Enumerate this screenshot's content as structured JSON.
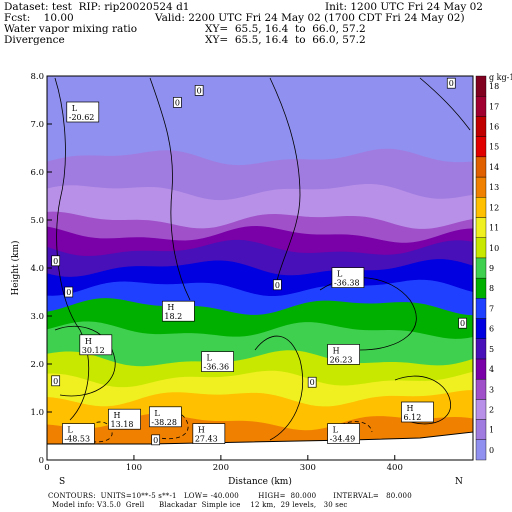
{
  "header": {
    "dataset": "Dataset: test  RIP: rip20020524 d1",
    "init": "Init: 1200 UTC Fri 24 May 02",
    "fcst": "Fcst:    10.00",
    "valid": "Valid: 2200 UTC Fri 24 May 02 (1700 CDT Fri 24 May 02)",
    "field1": "Water vapor mixing ratio",
    "field1_xy": "XY=  65.5, 16.4  to  66.0, 57.2",
    "field2": "Divergence",
    "field2_xy": "XY=  65.5, 16.4  to  66.0, 57.2"
  },
  "footer": {
    "line1": "CONTOURS:  UNITS=10**-5 s**-1   LOW= -40.000        HIGH=  80.000       INTERVAL=   80.000",
    "line2": "Model info: V3.5.0  Grell      Blackadar  Simple ice    12 km,  29 levels,   30 sec"
  },
  "colors": {
    "bar": [
      "#9090f0",
      "#a07ce0",
      "#b890e8",
      "#a050c8",
      "#7a00a8",
      "#4810b8",
      "#0000e0",
      "#2040ff",
      "#00b000",
      "#40d050",
      "#c8e800",
      "#f0f020",
      "#ffc000",
      "#f08000",
      "#e06000",
      "#e00000",
      "#c00000",
      "#a00030",
      "#800020"
    ],
    "plot_bg": "#ffffff",
    "ground": "#ffffff"
  },
  "chart_data": {
    "type": "heatmap",
    "xlabel": "Distance (km)",
    "ylabel": "Height (km)",
    "xlim": [
      0,
      490
    ],
    "ylim": [
      0,
      8
    ],
    "x_ticks": [
      0,
      100,
      200,
      300,
      400
    ],
    "y_ticks": [
      "0",
      "1.0",
      "2.0",
      "3.0",
      "4.0",
      "5.0",
      "6.0",
      "7.0",
      "8.0"
    ],
    "x_end_labels": [
      "S",
      "N"
    ],
    "colorbar_unit": "g kg-1",
    "colorbar_ticks": [
      "0",
      "1",
      "2",
      "3",
      "4",
      "5",
      "6",
      "7",
      "8",
      "9",
      "10",
      "11",
      "12",
      "13",
      "14",
      "15",
      "16",
      "17",
      "18"
    ],
    "bands": [
      {
        "level": 0,
        "y": 8.0
      },
      {
        "level": 1,
        "y": 6.3
      },
      {
        "level": 2,
        "y": 5.6
      },
      {
        "level": 3,
        "y": 5.0
      },
      {
        "level": 4,
        "y": 4.7
      },
      {
        "level": 5,
        "y": 4.4
      },
      {
        "level": 6,
        "y": 4.0
      },
      {
        "level": 7,
        "y": 3.6
      },
      {
        "level": 8,
        "y": 3.2
      },
      {
        "level": 9,
        "y": 2.7
      },
      {
        "level": 10,
        "y": 2.1
      },
      {
        "level": 11,
        "y": 1.7
      },
      {
        "level": 12,
        "y": 1.3
      },
      {
        "level": 13,
        "y": 0.8
      }
    ],
    "contour_labels": [
      {
        "text": "0",
        "x": 10,
        "y": 4.15
      },
      {
        "text": "0",
        "x": 25,
        "y": 3.5
      },
      {
        "text": "0",
        "x": 10,
        "y": 1.65
      },
      {
        "text": "0",
        "x": 125,
        "y": 0.42
      },
      {
        "text": "0",
        "x": 150,
        "y": 7.45
      },
      {
        "text": "0",
        "x": 175,
        "y": 7.7
      },
      {
        "text": "0",
        "x": 265,
        "y": 3.65
      },
      {
        "text": "0",
        "x": 305,
        "y": 1.62
      },
      {
        "text": "0",
        "x": 465,
        "y": 7.85
      },
      {
        "text": "0",
        "x": 478,
        "y": 2.85
      }
    ],
    "extrema": [
      {
        "type": "L",
        "value": "-20.62",
        "x": 40,
        "y": 7.25
      },
      {
        "type": "L",
        "value": "-36.36",
        "x": 195,
        "y": 2.05
      },
      {
        "type": "L",
        "value": "-38.28",
        "x": 135,
        "y": 0.9
      },
      {
        "type": "L",
        "value": "-48.53",
        "x": 35,
        "y": 0.55
      },
      {
        "type": "L",
        "value": "-34.49",
        "x": 340,
        "y": 0.55
      },
      {
        "type": "L",
        "value": "-36.38",
        "x": 345,
        "y": 3.8
      },
      {
        "type": "H",
        "value": "18.2",
        "x": 150,
        "y": 3.1
      },
      {
        "type": "H",
        "value": "30.12",
        "x": 55,
        "y": 2.4
      },
      {
        "type": "H",
        "value": "13.18",
        "x": 88,
        "y": 0.85
      },
      {
        "type": "H",
        "value": "27.43",
        "x": 185,
        "y": 0.55
      },
      {
        "type": "H",
        "value": "26.23",
        "x": 340,
        "y": 2.2
      },
      {
        "type": "H",
        "value": "6.12",
        "x": 425,
        "y": 1.0
      }
    ]
  }
}
